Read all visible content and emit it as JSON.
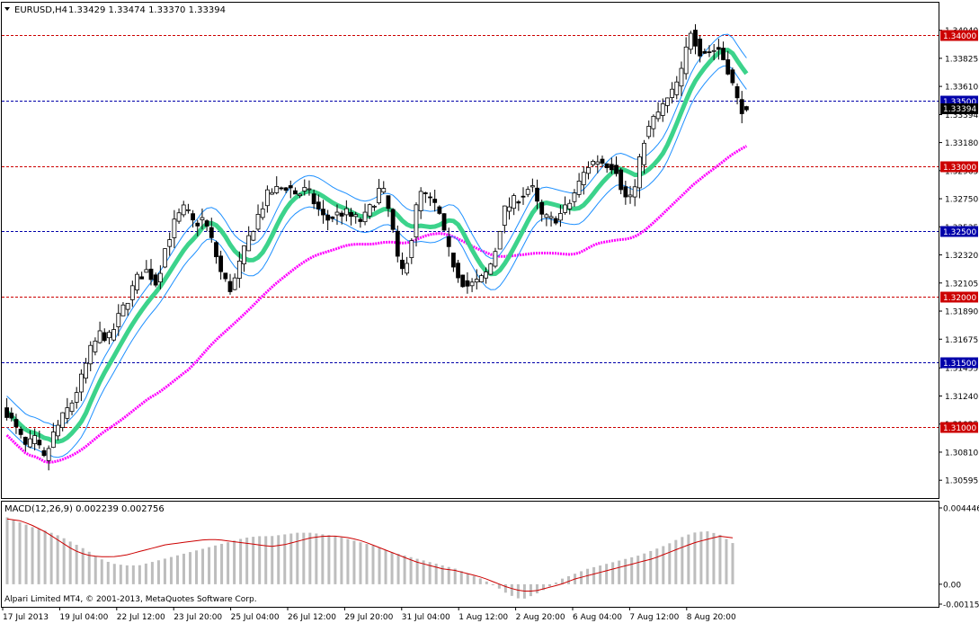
{
  "window": {
    "symbol_title": "EURUSD,H4",
    "ohlc_text": "1.33429 1.33474 1.33370 1.33394",
    "copyright": "Alpari Limited MT4, © 2001-2013, MetaQuotes Software Corp."
  },
  "colors": {
    "background": "#ffffff",
    "candle_up": "#ffffff",
    "candle_down": "#000000",
    "ma_thick": "#3cd38b",
    "bands": "#1e90ff",
    "ma_slow": "#ff00ff",
    "level_red": "#cc0000",
    "level_blue": "#0000aa",
    "macd_hist": "#bdbdbd",
    "macd_signal": "#cc0000"
  },
  "chart_data": {
    "type": "candlestick",
    "symbol": "EURUSD",
    "timeframe": "H4",
    "ylim": [
      1.305,
      1.3412
    ],
    "y_ticks": [
      "1.34040",
      "1.33825",
      "1.33610",
      "1.33394",
      "1.33180",
      "1.32965",
      "1.32750",
      "1.32535",
      "1.32320",
      "1.32105",
      "1.31890",
      "1.31675",
      "1.31455",
      "1.31240",
      "1.31025",
      "1.30810",
      "1.30595"
    ],
    "x_ticks": [
      "17 Jul 2013",
      "19 Jul 04:00",
      "22 Jul 12:00",
      "23 Jul 20:00",
      "25 Jul 04:00",
      "26 Jul 12:00",
      "29 Jul 20:00",
      "31 Jul 04:00",
      "1 Aug 12:00",
      "2 Aug 20:00",
      "6 Aug 04:00",
      "7 Aug 12:00",
      "8 Aug 20:00"
    ],
    "current_price": "1.33394",
    "levels": [
      {
        "value": 1.34,
        "label": "1.34000",
        "color": "red"
      },
      {
        "value": 1.335,
        "label": "1.33500",
        "color": "blue"
      },
      {
        "value": 1.33,
        "label": "1.33000",
        "color": "red"
      },
      {
        "value": 1.325,
        "label": "1.32500",
        "color": "blue"
      },
      {
        "value": 1.32,
        "label": "1.32000",
        "color": "red"
      },
      {
        "value": 1.315,
        "label": "1.31500",
        "color": "blue"
      },
      {
        "value": 1.31,
        "label": "1.31000",
        "color": "red"
      }
    ],
    "close_anchors": [
      1.3112,
      1.3098,
      1.3085,
      1.309,
      1.3075,
      1.3095,
      1.3108,
      1.312,
      1.3138,
      1.316,
      1.3172,
      1.3168,
      1.3185,
      1.32,
      1.3215,
      1.322,
      1.321,
      1.324,
      1.3258,
      1.3268,
      1.3255,
      1.326,
      1.324,
      1.3215,
      1.3205,
      1.3228,
      1.3248,
      1.3265,
      1.328,
      1.3282,
      1.3285,
      1.3278,
      1.3282,
      1.327,
      1.3258,
      1.3262,
      1.3265,
      1.326,
      1.3258,
      1.327,
      1.3285,
      1.326,
      1.3215,
      1.3235,
      1.328,
      1.3275,
      1.3268,
      1.3238,
      1.322,
      1.3208,
      1.321,
      1.3215,
      1.323,
      1.3265,
      1.3272,
      1.3278,
      1.3285,
      1.3262,
      1.3258,
      1.3262,
      1.327,
      1.3285,
      1.33,
      1.3305,
      1.3302,
      1.33,
      1.3275,
      1.328,
      1.332,
      1.3335,
      1.3345,
      1.3355,
      1.337,
      1.3405,
      1.3388,
      1.3388,
      1.339,
      1.3375,
      1.335,
      1.3339
    ],
    "macd": {
      "label": "MACD(12,26,9) 0.002239 0.002756",
      "ylim": [
        -0.001158,
        0.004446
      ],
      "y_ticks": [
        "0.004446",
        "0.00",
        "-0.001158"
      ],
      "histogram_anchors": [
        0.0039,
        0.0036,
        0.0033,
        0.0031,
        0.0028,
        0.0024,
        0.002,
        0.0015,
        0.0012,
        0.0011,
        0.0011,
        0.0013,
        0.0015,
        0.0017,
        0.0019,
        0.0021,
        0.0023,
        0.0025,
        0.0027,
        0.0028,
        0.0028,
        0.0029,
        0.003,
        0.003,
        0.0029,
        0.0028,
        0.0026,
        0.0024,
        0.0022,
        0.0019,
        0.0017,
        0.0015,
        0.0013,
        0.0011,
        0.0009,
        0.0006,
        0.0003,
        -0.0001,
        -0.0006,
        -0.0009,
        -0.0006,
        -0.0002,
        0.0003,
        0.0006,
        0.0009,
        0.0011,
        0.0013,
        0.0015,
        0.0017,
        0.002,
        0.0023,
        0.0027,
        0.003,
        0.0031,
        0.0029,
        0.0024
      ],
      "signal_anchors": [
        0.0038,
        0.0037,
        0.0034,
        0.003,
        0.0025,
        0.002,
        0.0017,
        0.0016,
        0.0016,
        0.0017,
        0.0019,
        0.0021,
        0.0023,
        0.0024,
        0.0025,
        0.0026,
        0.0026,
        0.0025,
        0.0024,
        0.0023,
        0.0022,
        0.0023,
        0.0025,
        0.0027,
        0.0028,
        0.0028,
        0.0027,
        0.0025,
        0.0022,
        0.0019,
        0.0016,
        0.0013,
        0.0011,
        0.0009,
        0.0008,
        0.0006,
        0.0004,
        0.0001,
        -0.0002,
        -0.0004,
        -0.0004,
        -0.0002,
        0.0,
        0.0003,
        0.0005,
        0.0007,
        0.0009,
        0.0011,
        0.0013,
        0.0015,
        0.0018,
        0.0021,
        0.0024,
        0.0026,
        0.0028,
        0.0027
      ]
    }
  }
}
